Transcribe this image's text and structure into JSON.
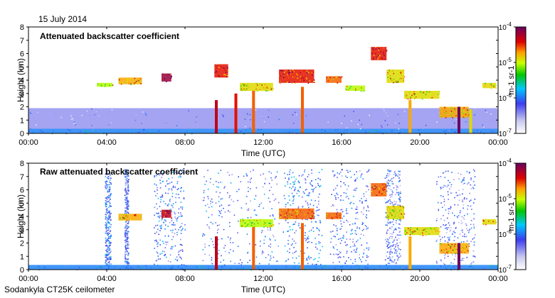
{
  "header": {
    "date": "15 July 2014"
  },
  "footer": {
    "instrument": "Sodankyla CT25K ceilometer"
  },
  "chart_data": [
    {
      "type": "heatmap",
      "title": "Attenuated backscatter coefficient",
      "xlabel": "Time (UTC)",
      "ylabel": "Height (km)",
      "x_ticks": [
        "00:00",
        "04:00",
        "08:00",
        "12:00",
        "16:00",
        "20:00",
        "00:00"
      ],
      "y_ticks": [
        "0",
        "1",
        "2",
        "3",
        "4",
        "5",
        "6",
        "7",
        "8"
      ],
      "xlim_hours": [
        0,
        24
      ],
      "ylim_km": [
        0,
        8
      ],
      "colorbar": {
        "scale": "log",
        "range": [
          1e-07,
          0.0001
        ],
        "unit_label": "m-1 sr-1",
        "tick_labels": [
          "10-4",
          "10-5",
          "10-6",
          "10-7"
        ]
      },
      "layers": [
        {
          "t0": 0.0,
          "t1": 24.0,
          "h0": 0.0,
          "h1": 0.35,
          "level": 0.35
        },
        {
          "t0": 0.0,
          "t1": 24.0,
          "h0": 0.35,
          "h1": 1.9,
          "level": 0.18
        },
        {
          "t0": 3.5,
          "t1": 4.3,
          "h0": 3.5,
          "h1": 3.8,
          "level": 0.65
        },
        {
          "t0": 4.6,
          "t1": 5.8,
          "h0": 3.7,
          "h1": 4.2,
          "level": 0.75
        },
        {
          "t0": 6.8,
          "t1": 7.3,
          "h0": 3.9,
          "h1": 4.5,
          "level": 0.95
        },
        {
          "t0": 9.5,
          "t1": 10.2,
          "h0": 4.2,
          "h1": 5.2,
          "level": 0.85
        },
        {
          "t0": 10.8,
          "t1": 12.5,
          "h0": 3.2,
          "h1": 3.8,
          "level": 0.7
        },
        {
          "t0": 12.8,
          "t1": 14.6,
          "h0": 3.8,
          "h1": 4.8,
          "level": 0.85
        },
        {
          "t0": 15.2,
          "t1": 16.0,
          "h0": 3.8,
          "h1": 4.3,
          "level": 0.8
        },
        {
          "t0": 16.2,
          "t1": 17.2,
          "h0": 3.2,
          "h1": 3.6,
          "level": 0.65
        },
        {
          "t0": 17.5,
          "t1": 18.3,
          "h0": 5.5,
          "h1": 6.5,
          "level": 0.85
        },
        {
          "t0": 18.3,
          "t1": 19.2,
          "h0": 3.8,
          "h1": 4.8,
          "level": 0.7
        },
        {
          "t0": 19.2,
          "t1": 21.0,
          "h0": 2.6,
          "h1": 3.2,
          "level": 0.7
        },
        {
          "t0": 21.0,
          "t1": 22.5,
          "h0": 1.2,
          "h1": 2.0,
          "level": 0.75
        },
        {
          "t0": 23.2,
          "t1": 23.9,
          "h0": 3.4,
          "h1": 3.8,
          "level": 0.7
        }
      ],
      "precip_streaks": [
        {
          "t": 9.6,
          "h_top": 2.5,
          "level": 0.9
        },
        {
          "t": 10.6,
          "h_top": 3.0,
          "level": 0.85
        },
        {
          "t": 11.5,
          "h_top": 3.2,
          "level": 0.8
        },
        {
          "t": 14.0,
          "h_top": 3.5,
          "level": 0.8
        },
        {
          "t": 19.5,
          "h_top": 2.5,
          "level": 0.75
        },
        {
          "t": 22.0,
          "h_top": 2.0,
          "level": 1.0
        },
        {
          "t": 22.6,
          "h_top": 1.8,
          "level": 0.7
        }
      ]
    },
    {
      "type": "heatmap",
      "title": "Raw attenuated backscatter coefficient",
      "xlabel": "Time (UTC)",
      "ylabel": "Height (km)",
      "x_ticks": [
        "00:00",
        "04:00",
        "08:00",
        "12:00",
        "16:00",
        "20:00",
        "00:00"
      ],
      "y_ticks": [
        "0",
        "1",
        "2",
        "3",
        "4",
        "5",
        "6",
        "7",
        "8"
      ],
      "xlim_hours": [
        0,
        24
      ],
      "ylim_km": [
        0,
        8
      ],
      "colorbar": {
        "scale": "log",
        "range": [
          1e-07,
          0.0001
        ],
        "unit_label": "m-1 sr-1",
        "tick_labels": [
          "10-4",
          "10-5",
          "10-6",
          "10-7"
        ]
      },
      "noisy_columns": [
        {
          "t0": 3.9,
          "t1": 4.2,
          "level": 0.3
        },
        {
          "t0": 4.9,
          "t1": 5.1,
          "level": 0.25
        },
        {
          "t0": 6.4,
          "t1": 8.0,
          "level": 0.3
        },
        {
          "t0": 8.8,
          "t1": 12.8,
          "level": 0.28
        },
        {
          "t0": 13.0,
          "t1": 15.0,
          "level": 0.32
        },
        {
          "t0": 15.4,
          "t1": 17.4,
          "level": 0.28
        },
        {
          "t0": 18.2,
          "t1": 19.0,
          "level": 0.25
        },
        {
          "t0": 20.8,
          "t1": 22.8,
          "level": 0.25
        }
      ],
      "layers": [
        {
          "t0": 0.0,
          "t1": 24.0,
          "h0": 0.0,
          "h1": 0.35,
          "level": 0.35
        },
        {
          "t0": 4.6,
          "t1": 5.8,
          "h0": 3.7,
          "h1": 4.2,
          "level": 0.75
        },
        {
          "t0": 6.8,
          "t1": 7.3,
          "h0": 3.9,
          "h1": 4.5,
          "level": 0.9
        },
        {
          "t0": 10.8,
          "t1": 12.5,
          "h0": 3.2,
          "h1": 3.8,
          "level": 0.65
        },
        {
          "t0": 12.8,
          "t1": 14.6,
          "h0": 3.8,
          "h1": 4.6,
          "level": 0.8
        },
        {
          "t0": 15.2,
          "t1": 16.0,
          "h0": 3.8,
          "h1": 4.3,
          "level": 0.8
        },
        {
          "t0": 17.5,
          "t1": 18.3,
          "h0": 5.5,
          "h1": 6.5,
          "level": 0.8
        },
        {
          "t0": 18.3,
          "t1": 19.2,
          "h0": 3.8,
          "h1": 4.8,
          "level": 0.7
        },
        {
          "t0": 19.2,
          "t1": 21.0,
          "h0": 2.6,
          "h1": 3.2,
          "level": 0.7
        },
        {
          "t0": 21.0,
          "t1": 22.5,
          "h0": 1.2,
          "h1": 2.0,
          "level": 0.75
        },
        {
          "t0": 23.2,
          "t1": 23.9,
          "h0": 3.4,
          "h1": 3.8,
          "level": 0.7
        }
      ],
      "precip_streaks": [
        {
          "t": 9.6,
          "h_top": 2.5,
          "level": 0.9
        },
        {
          "t": 11.5,
          "h_top": 3.2,
          "level": 0.8
        },
        {
          "t": 14.0,
          "h_top": 3.5,
          "level": 0.8
        },
        {
          "t": 19.5,
          "h_top": 2.5,
          "level": 0.75
        },
        {
          "t": 22.0,
          "h_top": 2.0,
          "level": 1.0
        }
      ]
    }
  ]
}
